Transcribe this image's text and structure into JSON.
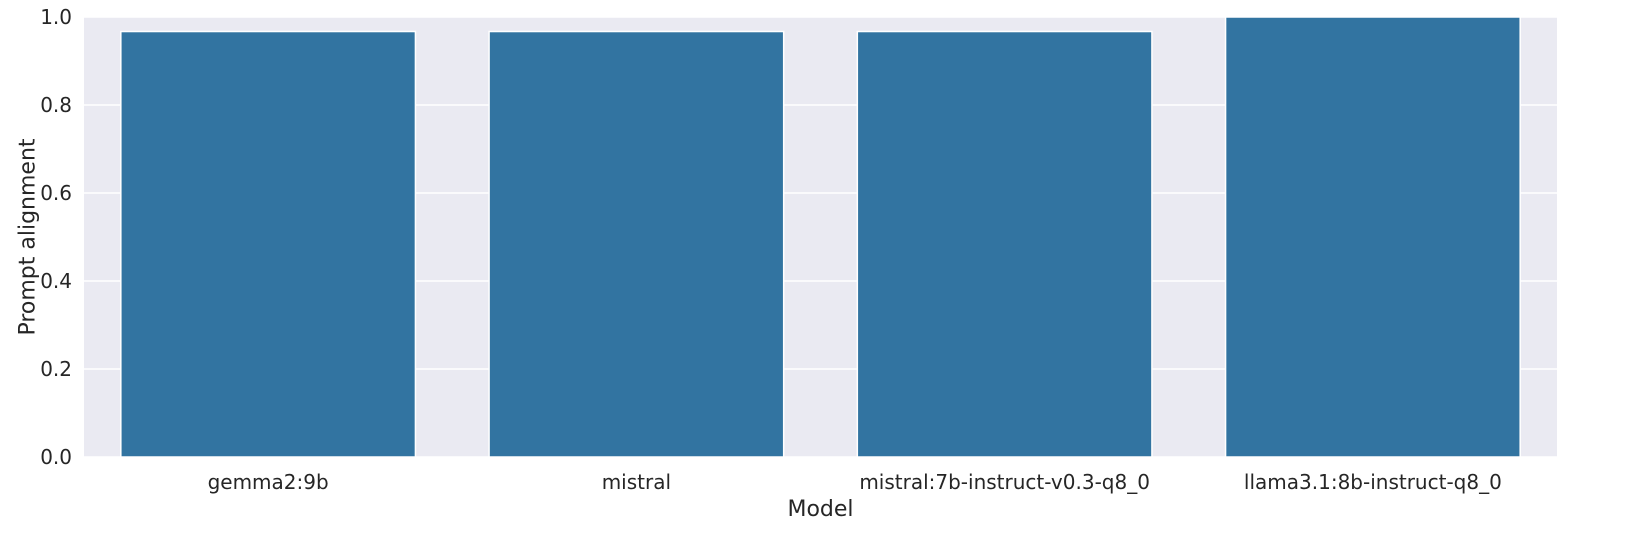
{
  "chart_data": {
    "type": "bar",
    "categories": [
      "gemma2:9b",
      "mistral",
      "mistral:7b-instruct-v0.3-q8_0",
      "llama3.1:8b-instruct-q8_0"
    ],
    "values": [
      0.967,
      0.967,
      0.967,
      1.0
    ],
    "xlabel": "Model",
    "ylabel": "Prompt alignment",
    "ylim": [
      0,
      1.0
    ],
    "yticks": [
      0.0,
      0.2,
      0.4,
      0.6,
      0.8,
      1.0
    ],
    "ytick_labels": [
      "0.0",
      "0.2",
      "0.4",
      "0.6",
      "0.8",
      "1.0"
    ],
    "grid": true,
    "colors": {
      "bar": "#3274a1",
      "plot_background": "#eaeaf2",
      "grid": "#ffffff",
      "text": "#262626"
    }
  }
}
